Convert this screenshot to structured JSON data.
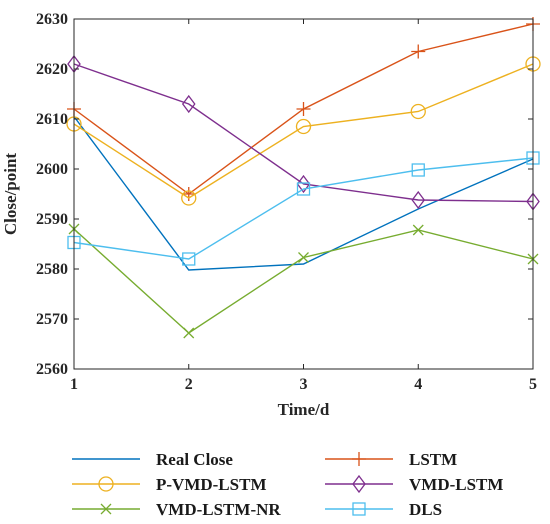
{
  "chart_data": {
    "type": "line",
    "x": [
      1,
      2,
      3,
      4,
      5
    ],
    "xlabel": "Time/d",
    "ylabel": "Close/point",
    "xlim": [
      1,
      5
    ],
    "ylim": [
      2560,
      2630
    ],
    "xticks": [
      "1",
      "2",
      "3",
      "4",
      "5"
    ],
    "yticks": [
      "2560",
      "2570",
      "2580",
      "2590",
      "2600",
      "2610",
      "2620",
      "2630"
    ],
    "grid": false,
    "legend_position": "below",
    "series": [
      {
        "name": "Real Close",
        "color": "#0072BD",
        "marker": "none",
        "values": [
          2610.5,
          2579.8,
          2581.0,
          2592.0,
          2602.0
        ]
      },
      {
        "name": "LSTM",
        "color": "#D95319",
        "marker": "plus",
        "values": [
          2612.0,
          2595.0,
          2612.0,
          2623.5,
          2629.0
        ]
      },
      {
        "name": "P-VMD-LSTM",
        "color": "#EDB120",
        "marker": "circle",
        "values": [
          2609.0,
          2594.2,
          2608.5,
          2611.5,
          2621.0
        ]
      },
      {
        "name": "VMD-LSTM",
        "color": "#7E2F8E",
        "marker": "diamond",
        "values": [
          2621.0,
          2613.0,
          2597.0,
          2593.8,
          2593.5
        ]
      },
      {
        "name": "VMD-LSTM-NR",
        "color": "#77AC30",
        "marker": "x",
        "values": [
          2588.0,
          2567.2,
          2582.3,
          2587.8,
          2582.0
        ]
      },
      {
        "name": "DLS",
        "color": "#4DBEEE",
        "marker": "square",
        "values": [
          2585.3,
          2582.0,
          2596.0,
          2599.8,
          2602.2
        ]
      }
    ]
  }
}
